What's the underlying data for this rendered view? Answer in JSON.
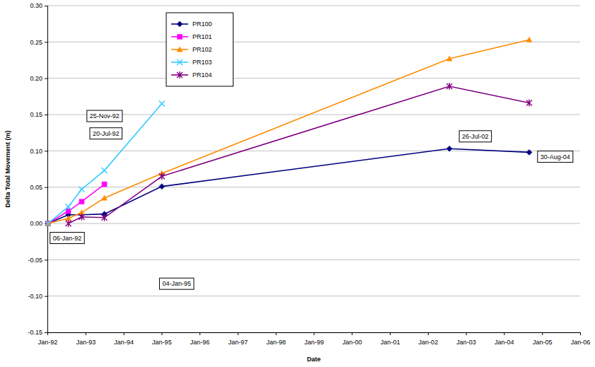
{
  "chart_data": {
    "type": "line",
    "x_label": "Date",
    "y_label": "Delta Total Movement (m)",
    "x": [
      "1992-01-06",
      "1992-07-20",
      "1992-11-25",
      "1993-07",
      "1995-01-04",
      "2002-07-26",
      "2004-08-30"
    ],
    "series": [
      {
        "name": "PR100",
        "color": "#000080",
        "marker": "diamond",
        "values": [
          0,
          0.012,
          0.012,
          0.013,
          0.051,
          0.103,
          0.098
        ]
      },
      {
        "name": "PR101",
        "color": "#ff00ff",
        "marker": "square",
        "values": [
          0,
          0.017,
          0.03,
          0.054,
          null,
          null,
          null
        ]
      },
      {
        "name": "PR102",
        "color": "#ff8c00",
        "marker": "triangle",
        "values": [
          0,
          0.007,
          0.015,
          0.035,
          0.069,
          0.227,
          0.253
        ]
      },
      {
        "name": "PR103",
        "color": "#33ccff",
        "marker": "x",
        "values": [
          0,
          0.023,
          0.047,
          0.073,
          0.165,
          null,
          null
        ]
      },
      {
        "name": "PR104",
        "color": "#800080",
        "marker": "star",
        "values": [
          null,
          0,
          0.009,
          0.008,
          0.065,
          0.189,
          0.166
        ]
      }
    ],
    "xlim": [
      "1992-01-01",
      "2006-01-01"
    ],
    "xticks": [
      {
        "value": "1992-01-01",
        "label": "Jan-92"
      },
      {
        "value": "1993-01-01",
        "label": "Jan-93"
      },
      {
        "value": "1994-01-01",
        "label": "Jan-94"
      },
      {
        "value": "1995-01-01",
        "label": "Jan-95"
      },
      {
        "value": "1996-01-01",
        "label": "Jan-96"
      },
      {
        "value": "1997-01-01",
        "label": "Jan-97"
      },
      {
        "value": "1998-01-01",
        "label": "Jan-98"
      },
      {
        "value": "1999-01-01",
        "label": "Jan-99"
      },
      {
        "value": "2000-01-01",
        "label": "Jan-00"
      },
      {
        "value": "2001-01-01",
        "label": "Jan-01"
      },
      {
        "value": "2002-01-01",
        "label": "Jan-02"
      },
      {
        "value": "2003-01-01",
        "label": "Jan-03"
      },
      {
        "value": "2004-01-01",
        "label": "Jan-04"
      },
      {
        "value": "2005-01-01",
        "label": "Jan-05"
      },
      {
        "value": "2006-01-01",
        "label": "Jan-06"
      }
    ],
    "ylim": [
      -0.15,
      0.3
    ],
    "yticks": [
      -0.15,
      {
        "value": -0.1,
        "label": "-0.10"
      },
      -0.05,
      {
        "value": 0,
        "label": "0.00"
      },
      0.05,
      {
        "value": 0.1,
        "label": "0.10"
      },
      0.15,
      {
        "value": 0.2,
        "label": "0.20"
      },
      0.25,
      {
        "value": 0.3,
        "label": "0.30"
      }
    ],
    "grid": true,
    "legend": "top-left",
    "annotations": [
      {
        "text": "06-Jan-92",
        "x": "1992-07-09",
        "y": -0.02
      },
      {
        "text": "25-Nov-92",
        "x": "1993-07-03",
        "y": 0.148
      },
      {
        "text": "20-Jul-92",
        "x": "1993-07-16",
        "y": 0.124
      },
      {
        "text": "04-Jan-95",
        "x": "1995-05-26",
        "y": -0.083
      },
      {
        "text": "26-Jul-02",
        "x": "2003-04-01",
        "y": 0.12
      },
      {
        "text": "30-Aug-04",
        "x": "2005-05-07",
        "y": 0.092
      }
    ]
  }
}
